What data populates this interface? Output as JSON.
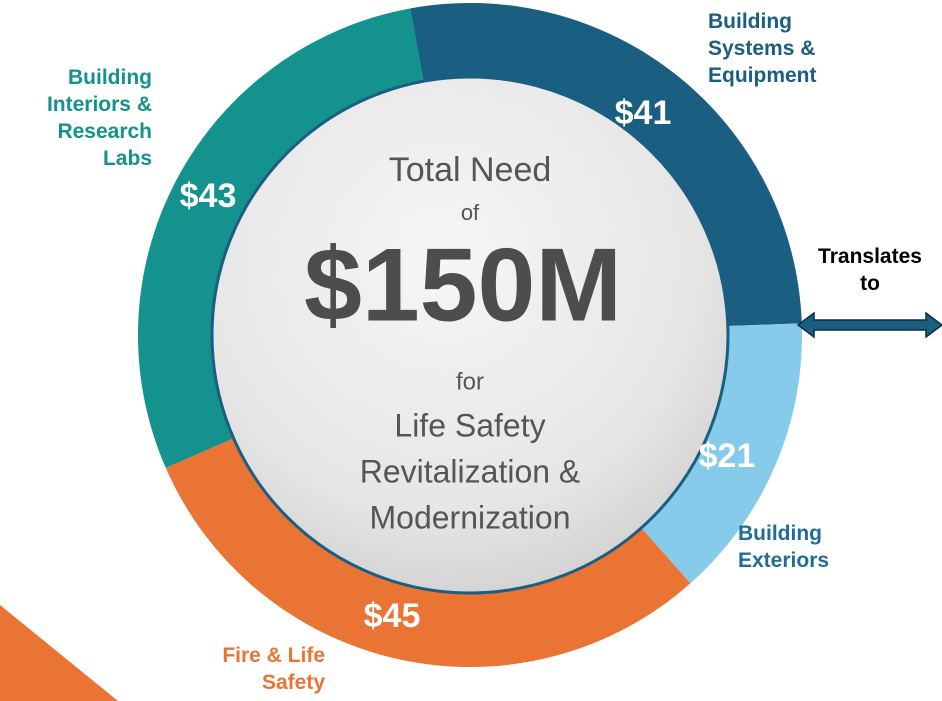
{
  "chart_data": {
    "type": "donut",
    "categories": [
      "Building\nSystems &\nEquipment",
      "Building\nExteriors",
      "Fire & Life\nSafety",
      "Building\nInteriors &\nResearch\nLabs"
    ],
    "values": [
      41,
      21,
      45,
      43
    ],
    "value_labels": [
      "$41",
      "$21",
      "$45",
      "$43"
    ],
    "colors": [
      "#1a5e82",
      "#86cbea",
      "#ea7433",
      "#13928e"
    ],
    "label_colors": [
      "#1a5e82",
      "#1f6d98",
      "#ea7433",
      "#13928e"
    ],
    "center_text": {
      "line1": "Total Need",
      "line2": "of",
      "total": "$150M",
      "line3": "for",
      "line4": "Life Safety",
      "line5": "Revitalization &",
      "line6": "Modernization"
    },
    "side_text": "Translates\nto"
  }
}
